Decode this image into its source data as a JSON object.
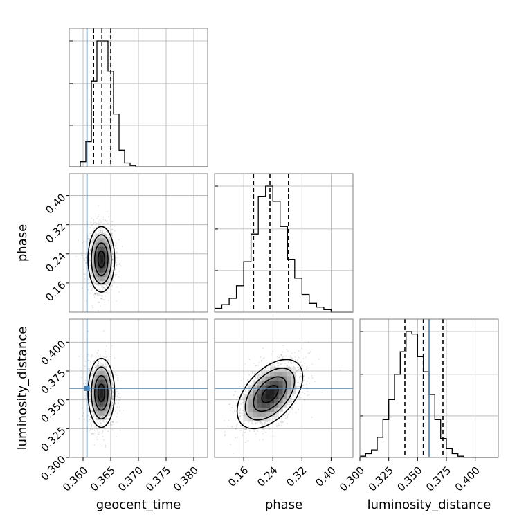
{
  "chart_data": {
    "type": "corner",
    "parameters": [
      "geocent_time",
      "phase",
      "luminosity_distance"
    ],
    "truths": {
      "geocent_time": 0.3607,
      "phase": null,
      "luminosity_distance": 0.36
    },
    "colors": {
      "truth": "#4682b4",
      "hist": "#000000",
      "grid": "#b0b0b0"
    },
    "axes": {
      "geocent_time": {
        "label": "geocent_time",
        "range": [
          0.3575,
          0.3825
        ],
        "ticks": [
          "0.360",
          "0.365",
          "0.370",
          "0.375",
          "0.380"
        ],
        "tick_values": [
          0.36,
          0.365,
          0.37,
          0.375,
          0.38
        ]
      },
      "phase": {
        "label": "phase",
        "range": [
          0.08,
          0.46
        ],
        "ticks": [
          "0.16",
          "0.24",
          "0.32",
          "0.40"
        ],
        "tick_values": [
          0.16,
          0.24,
          0.32,
          0.4
        ]
      },
      "luminosity_distance": {
        "label": "luminosity_distance",
        "range": [
          0.3,
          0.42
        ],
        "ticks": [
          "0.300",
          "0.325",
          "0.350",
          "0.375",
          "0.400"
        ],
        "tick_values": [
          0.3,
          0.325,
          0.35,
          0.375,
          0.4
        ]
      }
    },
    "histograms": {
      "geocent_time": {
        "bin_start": 0.3575,
        "bin_width": 0.001,
        "counts": [
          0,
          0,
          4,
          20,
          68,
          100,
          100,
          76,
          42,
          13,
          3,
          1,
          0,
          0,
          0,
          0,
          0,
          0,
          0,
          0,
          0,
          0,
          0,
          0,
          0
        ],
        "quantiles": [
          0.3619,
          0.3634,
          0.365
        ]
      },
      "phase": {
        "bin_start": 0.08,
        "bin_width": 0.02,
        "counts": [
          3,
          6,
          11,
          21,
          40,
          62,
          92,
          100,
          88,
          68,
          42,
          27,
          14,
          7,
          4,
          2,
          0,
          0,
          0
        ],
        "quantiles": [
          0.187,
          0.232,
          0.283
        ]
      },
      "luminosity_distance": {
        "bin_start": 0.3,
        "bin_width": 0.005,
        "counts": [
          1,
          3,
          6,
          16,
          30,
          46,
          66,
          84,
          100,
          98,
          80,
          68,
          50,
          30,
          15,
          7,
          3,
          1,
          0,
          0,
          0,
          0,
          0,
          0
        ],
        "quantiles": [
          0.339,
          0.355,
          0.372
        ]
      }
    },
    "density_2d": {
      "phase_vs_geocent_time": {
        "center": [
          0.3633,
          0.225
        ],
        "sigma": [
          0.0012,
          0.045
        ]
      },
      "luminosity_distance_vs_geocent_time": {
        "center": [
          0.3633,
          0.356
        ],
        "sigma": [
          0.0012,
          0.015
        ]
      },
      "luminosity_distance_vs_phase": {
        "center": [
          0.232,
          0.355
        ],
        "sigma": [
          0.045,
          0.015
        ],
        "correlation": 0.5
      }
    }
  }
}
